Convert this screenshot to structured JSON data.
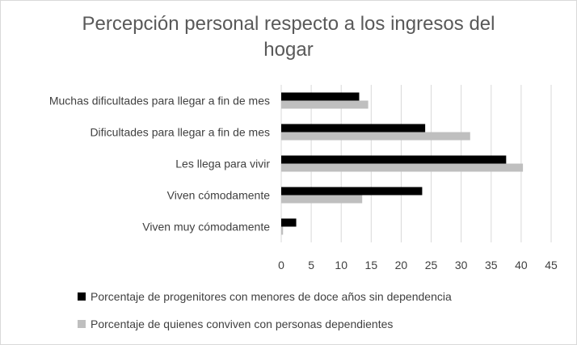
{
  "chart_data": {
    "type": "bar",
    "orientation": "horizontal",
    "title": "Percepción personal respecto a los ingresos del hogar",
    "title_lines": [
      "Percepción personal respecto a los ingresos del",
      "hogar"
    ],
    "categories": [
      "Muchas dificultades para llegar a fin de mes",
      "Dificultades para llegar a fin de mes",
      "Les llega para vivir",
      "Viven cómodamente",
      "Viven muy cómodamente"
    ],
    "series": [
      {
        "name": "Porcentaje de progenitores con menores de doce años sin dependencia",
        "color": "#000000",
        "values": [
          13.0,
          24.0,
          37.5,
          23.5,
          2.5
        ]
      },
      {
        "name": "Porcentaje de quienes conviven con personas dependientes",
        "color": "#bfbfbf",
        "values": [
          14.5,
          31.5,
          40.3,
          13.5,
          0.3
        ]
      }
    ],
    "xlim": [
      0,
      45
    ],
    "xticks": [
      "0",
      "5",
      "10",
      "15",
      "20",
      "25",
      "30",
      "35",
      "40",
      "45"
    ],
    "grid": true,
    "legend_position": "bottom"
  }
}
